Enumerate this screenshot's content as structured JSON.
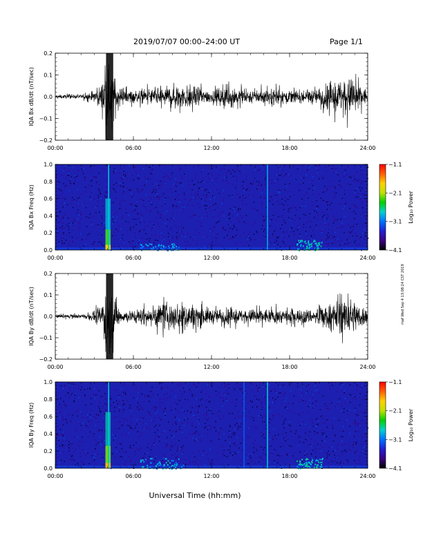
{
  "header": {
    "title": "2019/07/07  00:00–24:00 UT",
    "page": "Page 1/1"
  },
  "side_note": "maf Wed Sep 4 13:08:24 CST 2019",
  "x_ticks": [
    "00:00",
    "06:00",
    "12:00",
    "18:00",
    "24:00"
  ],
  "x_axis_label": "Universal Time (hh:mm)",
  "colors": {
    "trace": "#000000",
    "spectrogram_background": "#1d1fb0",
    "colorbar": [
      "#000000",
      "#3a0080",
      "#2020d0",
      "#0070ff",
      "#00d0d0",
      "#00d000",
      "#c0e000",
      "#ffd000",
      "#ff6000",
      "#ff0000"
    ]
  },
  "chart_data": [
    {
      "type": "line",
      "ylabel": "IQA Bx dB/dt (nT/sec)",
      "xlim": [
        0,
        24
      ],
      "ylim": [
        -0.2,
        0.2
      ],
      "y_ticks": [
        "0.2",
        "0.1",
        "0.0",
        "−0.1",
        "−0.2"
      ],
      "envelope": {
        "x": [
          0,
          2,
          3.0,
          3.5,
          3.9,
          4.1,
          4.4,
          4.7,
          5.0,
          6,
          8,
          9.5,
          11,
          12,
          13.5,
          14.5,
          16,
          17,
          18,
          20,
          21,
          22.5,
          23.5,
          24
        ],
        "amplitude": [
          0.015,
          0.015,
          0.04,
          0.09,
          0.22,
          0.22,
          0.2,
          0.12,
          0.05,
          0.05,
          0.07,
          0.1,
          0.08,
          0.05,
          0.09,
          0.05,
          0.06,
          0.07,
          0.05,
          0.06,
          0.11,
          0.15,
          0.09,
          0.05
        ]
      }
    },
    {
      "type": "heatmap",
      "ylabel": "IQA Bx Freq (Hz)",
      "xlim": [
        0,
        24
      ],
      "ylim": [
        0,
        1.0
      ],
      "y_ticks": [
        "1.0",
        "0.8",
        "0.6",
        "0.4",
        "0.2",
        "0.0"
      ],
      "colorbar_label": "Log₁₀ Power",
      "colorbar_ticks": [
        "−1.1",
        "−2.1",
        "−3.1",
        "−4.1"
      ],
      "zlim": [
        -4.1,
        -1.1
      ],
      "features": [
        {
          "kind": "burst",
          "t": 4.0,
          "f_max": 0.6,
          "level": -1.8
        },
        {
          "kind": "line",
          "t": 4.1,
          "level": -2.8
        },
        {
          "kind": "line",
          "t": 16.3,
          "level": -2.9
        },
        {
          "kind": "band",
          "t0": 6.5,
          "t1": 9.5,
          "f_max": 0.08,
          "level": -3.2
        },
        {
          "kind": "band",
          "t0": 18.5,
          "t1": 20.5,
          "f_max": 0.12,
          "level": -3.0
        }
      ]
    },
    {
      "type": "line",
      "ylabel": "IQA By dB/dt (nT/sec)",
      "xlim": [
        0,
        24
      ],
      "ylim": [
        -0.2,
        0.2
      ],
      "y_ticks": [
        "0.2",
        "0.1",
        "0.0",
        "−0.1",
        "−0.2"
      ],
      "envelope": {
        "x": [
          0,
          2,
          3.0,
          3.5,
          3.9,
          4.1,
          4.4,
          4.7,
          5.0,
          6,
          8,
          9.5,
          11,
          12,
          13.5,
          14.5,
          16,
          17,
          18,
          20,
          21,
          22.5,
          23.5,
          24
        ],
        "amplitude": [
          0.015,
          0.015,
          0.04,
          0.1,
          0.25,
          0.25,
          0.25,
          0.14,
          0.05,
          0.05,
          0.1,
          0.12,
          0.09,
          0.06,
          0.07,
          0.05,
          0.06,
          0.06,
          0.05,
          0.06,
          0.1,
          0.15,
          0.1,
          0.05
        ]
      }
    },
    {
      "type": "heatmap",
      "ylabel": "IQA By Freq (Hz)",
      "xlim": [
        0,
        24
      ],
      "ylim": [
        0,
        1.0
      ],
      "y_ticks": [
        "1.0",
        "0.8",
        "0.6",
        "0.4",
        "0.2",
        "0.0"
      ],
      "colorbar_label": "Log₁₀ Power",
      "colorbar_ticks": [
        "−1.1",
        "−2.1",
        "−3.1",
        "−4.1"
      ],
      "zlim": [
        -4.1,
        -1.1
      ],
      "features": [
        {
          "kind": "burst",
          "t": 4.0,
          "f_max": 0.65,
          "level": -1.7
        },
        {
          "kind": "line",
          "t": 4.1,
          "level": -2.8
        },
        {
          "kind": "line",
          "t": 16.3,
          "level": -2.8
        },
        {
          "kind": "line",
          "t": 14.5,
          "level": -3.2
        },
        {
          "kind": "band",
          "t0": 6.5,
          "t1": 10,
          "f_max": 0.12,
          "level": -3.1
        },
        {
          "kind": "band",
          "t0": 18.5,
          "t1": 20.5,
          "f_max": 0.12,
          "level": -3.0
        }
      ]
    }
  ]
}
